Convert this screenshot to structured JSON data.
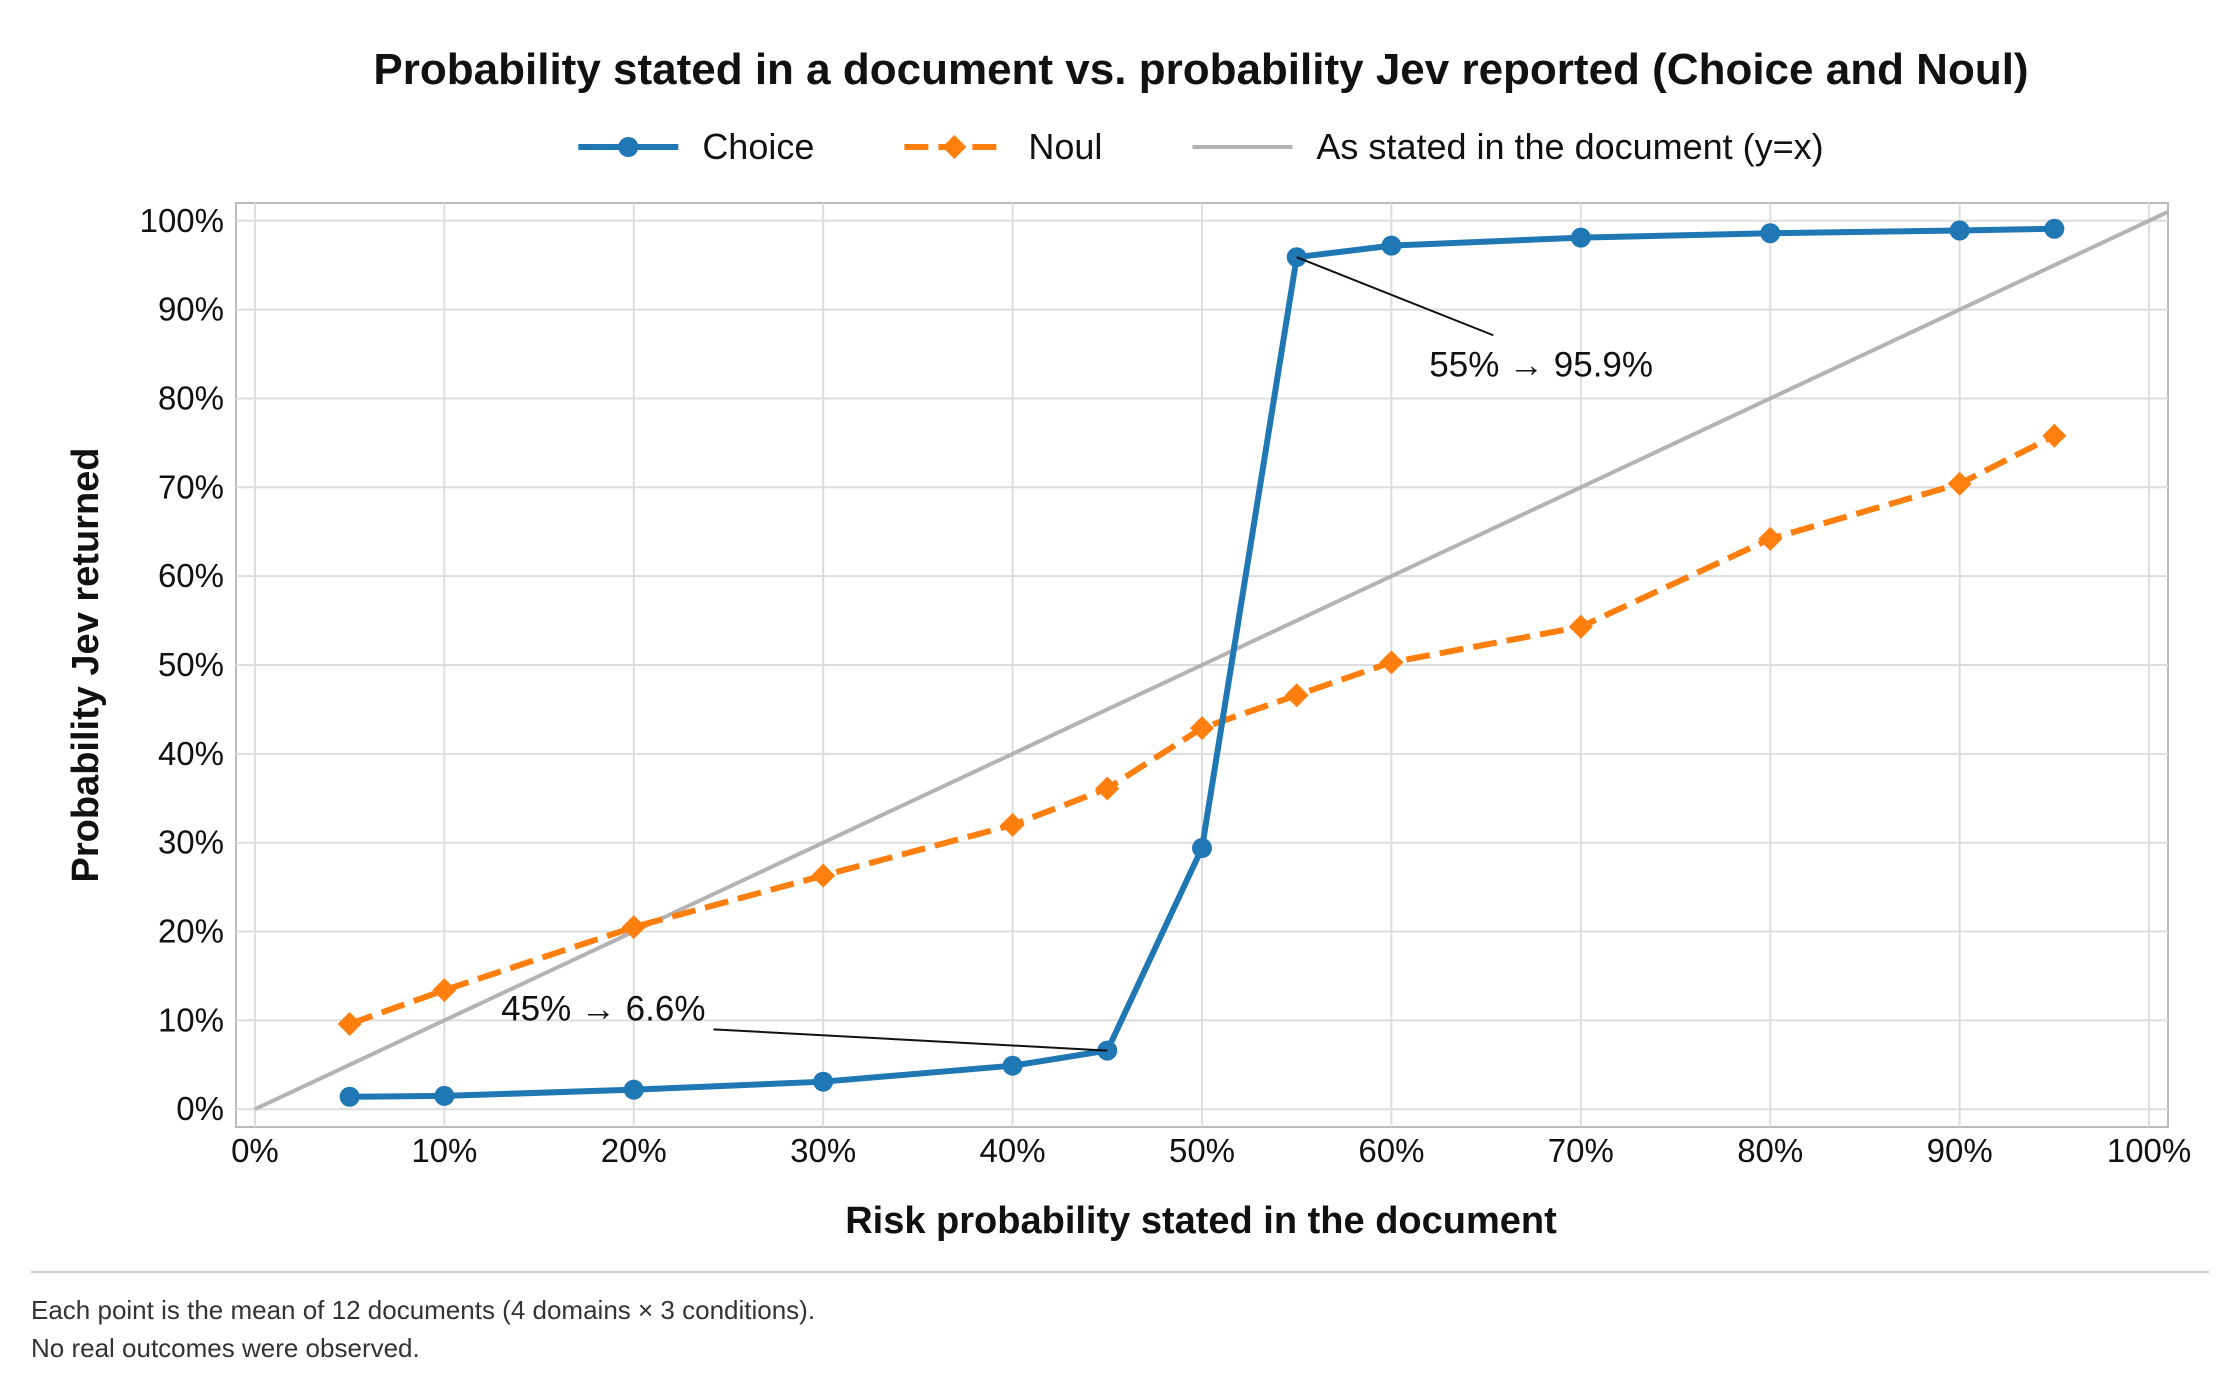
{
  "chart_data": {
    "type": "line",
    "title": "Probability stated in a document vs. probability Jev reported (Choice and Noul)",
    "xlabel": "Risk probability stated in the document",
    "ylabel": "Probability Jev returned",
    "xlim": [
      -1,
      101
    ],
    "ylim": [
      -2,
      102
    ],
    "x_ticks": [
      0,
      10,
      20,
      30,
      40,
      50,
      60,
      70,
      80,
      90,
      100
    ],
    "y_ticks": [
      0,
      10,
      20,
      30,
      40,
      50,
      60,
      70,
      80,
      90,
      100
    ],
    "x_tick_labels": [
      "0%",
      "10%",
      "20%",
      "30%",
      "40%",
      "50%",
      "60%",
      "70%",
      "80%",
      "90%",
      "100%"
    ],
    "y_tick_labels": [
      "0%",
      "10%",
      "20%",
      "30%",
      "40%",
      "50%",
      "60%",
      "70%",
      "80%",
      "90%",
      "100%"
    ],
    "grid": true,
    "legend_position": "top-center",
    "series": [
      {
        "name": "Choice",
        "color": "#1f77b4",
        "marker": "circle",
        "line_style": "solid",
        "x": [
          5,
          10,
          20,
          30,
          40,
          45,
          50,
          55,
          60,
          70,
          80,
          90,
          95
        ],
        "y": [
          1.4,
          1.5,
          2.2,
          3.1,
          4.9,
          6.6,
          29.4,
          95.9,
          97.2,
          98.1,
          98.6,
          98.9,
          99.1
        ]
      },
      {
        "name": "Noul",
        "color": "#ff7f0e",
        "marker": "diamond",
        "line_style": "dashed",
        "x": [
          5,
          10,
          20,
          30,
          40,
          45,
          50,
          55,
          60,
          70,
          80,
          90,
          95
        ],
        "y": [
          9.6,
          13.4,
          20.5,
          26.3,
          32.0,
          36.1,
          42.9,
          46.6,
          50.3,
          54.3,
          64.2,
          70.4,
          75.8
        ]
      },
      {
        "name": "As stated in the document (y=x)",
        "color": "#b3b3b3",
        "marker": "none",
        "line_style": "solid",
        "x": [
          0,
          101
        ],
        "y": [
          0,
          101
        ]
      }
    ],
    "annotations": [
      {
        "text": "45% → 6.6%",
        "x": 45,
        "y": 6.6,
        "text_x": 13,
        "text_y": 10
      },
      {
        "text": "55% → 95.9%",
        "x": 55,
        "y": 95.9,
        "text_x": 62,
        "text_y": 82.5
      }
    ]
  },
  "footnote": {
    "line1": "Each point is the mean of 12 documents (4 domains × 3 conditions).",
    "line2": "No real outcomes were observed."
  }
}
